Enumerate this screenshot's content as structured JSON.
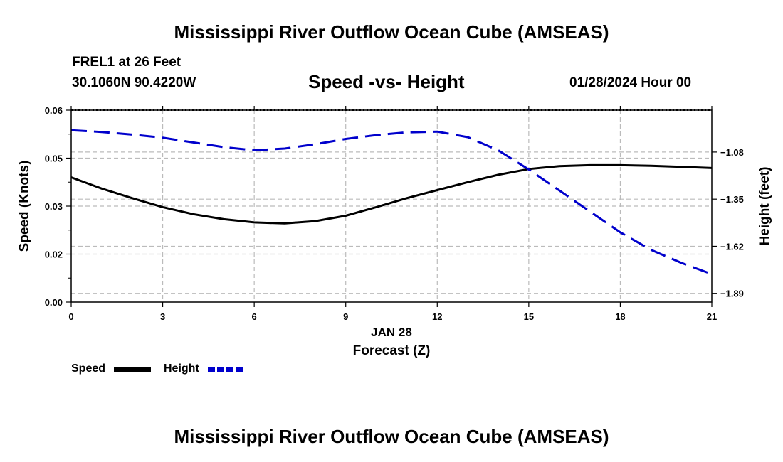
{
  "title": "Mississippi River Outflow Ocean Cube (AMSEAS)",
  "title_bottom": "Mississippi River Outflow Ocean Cube (AMSEAS)",
  "station": "FREL1 at 26 Feet",
  "coordinates": "30.1060N  90.4220W",
  "datetime": "01/28/2024 Hour 00",
  "colors": {
    "speed": "#000000",
    "height": "#0000cc",
    "grid": "#bbbbbb"
  },
  "legend": {
    "speed": "Speed",
    "height": "Height"
  },
  "chart_data": {
    "type": "line",
    "title": "Speed -vs- Height",
    "xlabel": "Forecast (Z)",
    "date_label": "JAN 28",
    "ylabel": "Speed (Knots)",
    "ylabel_right": "Height (feet)",
    "xlim": [
      0,
      21
    ],
    "ylim": [
      0,
      0.06
    ],
    "ylim_right": [
      -1.94,
      -0.84
    ],
    "x_ticks": [
      0,
      3,
      6,
      9,
      12,
      15,
      18,
      21
    ],
    "x_tick_labels": [
      "0",
      "3",
      "6",
      "9",
      "12",
      "15",
      "18",
      "21"
    ],
    "y_ticks": [
      0,
      0.015,
      0.03,
      0.045,
      0.06
    ],
    "y_tick_labels": [
      "0.00",
      "0.02",
      "0.03",
      "0.05",
      "0.06"
    ],
    "y_right_ticks": [
      -1.08,
      -1.35,
      -1.62,
      -1.89
    ],
    "y_right_tick_labels": [
      "−1.08",
      "−1.35",
      "−1.62",
      "−1.89"
    ],
    "grid": true,
    "legend_position": "bottom-left",
    "series": [
      {
        "name": "Speed",
        "axis": "left",
        "style": "solid",
        "x": [
          0,
          1,
          2,
          3,
          4,
          5,
          6,
          7,
          8,
          9,
          10,
          11,
          12,
          13,
          14,
          15,
          16,
          17,
          18,
          19,
          20,
          21
        ],
        "values": [
          0.039,
          0.0355,
          0.0325,
          0.0297,
          0.0275,
          0.0259,
          0.0249,
          0.0246,
          0.0253,
          0.027,
          0.0297,
          0.0325,
          0.035,
          0.0375,
          0.0398,
          0.0416,
          0.0425,
          0.0428,
          0.0428,
          0.0426,
          0.0423,
          0.0419
        ]
      },
      {
        "name": "Height",
        "axis": "right",
        "style": "dashed",
        "x": [
          0,
          1,
          2,
          3,
          4,
          5,
          6,
          7,
          8,
          9,
          10,
          11,
          12,
          13,
          14,
          15,
          16,
          17,
          18,
          19,
          20,
          21
        ],
        "values": [
          -0.955,
          -0.965,
          -0.98,
          -0.998,
          -1.025,
          -1.052,
          -1.07,
          -1.06,
          -1.035,
          -1.005,
          -0.983,
          -0.967,
          -0.963,
          -0.995,
          -1.07,
          -1.18,
          -1.3,
          -1.42,
          -1.54,
          -1.64,
          -1.715,
          -1.78
        ]
      }
    ]
  }
}
